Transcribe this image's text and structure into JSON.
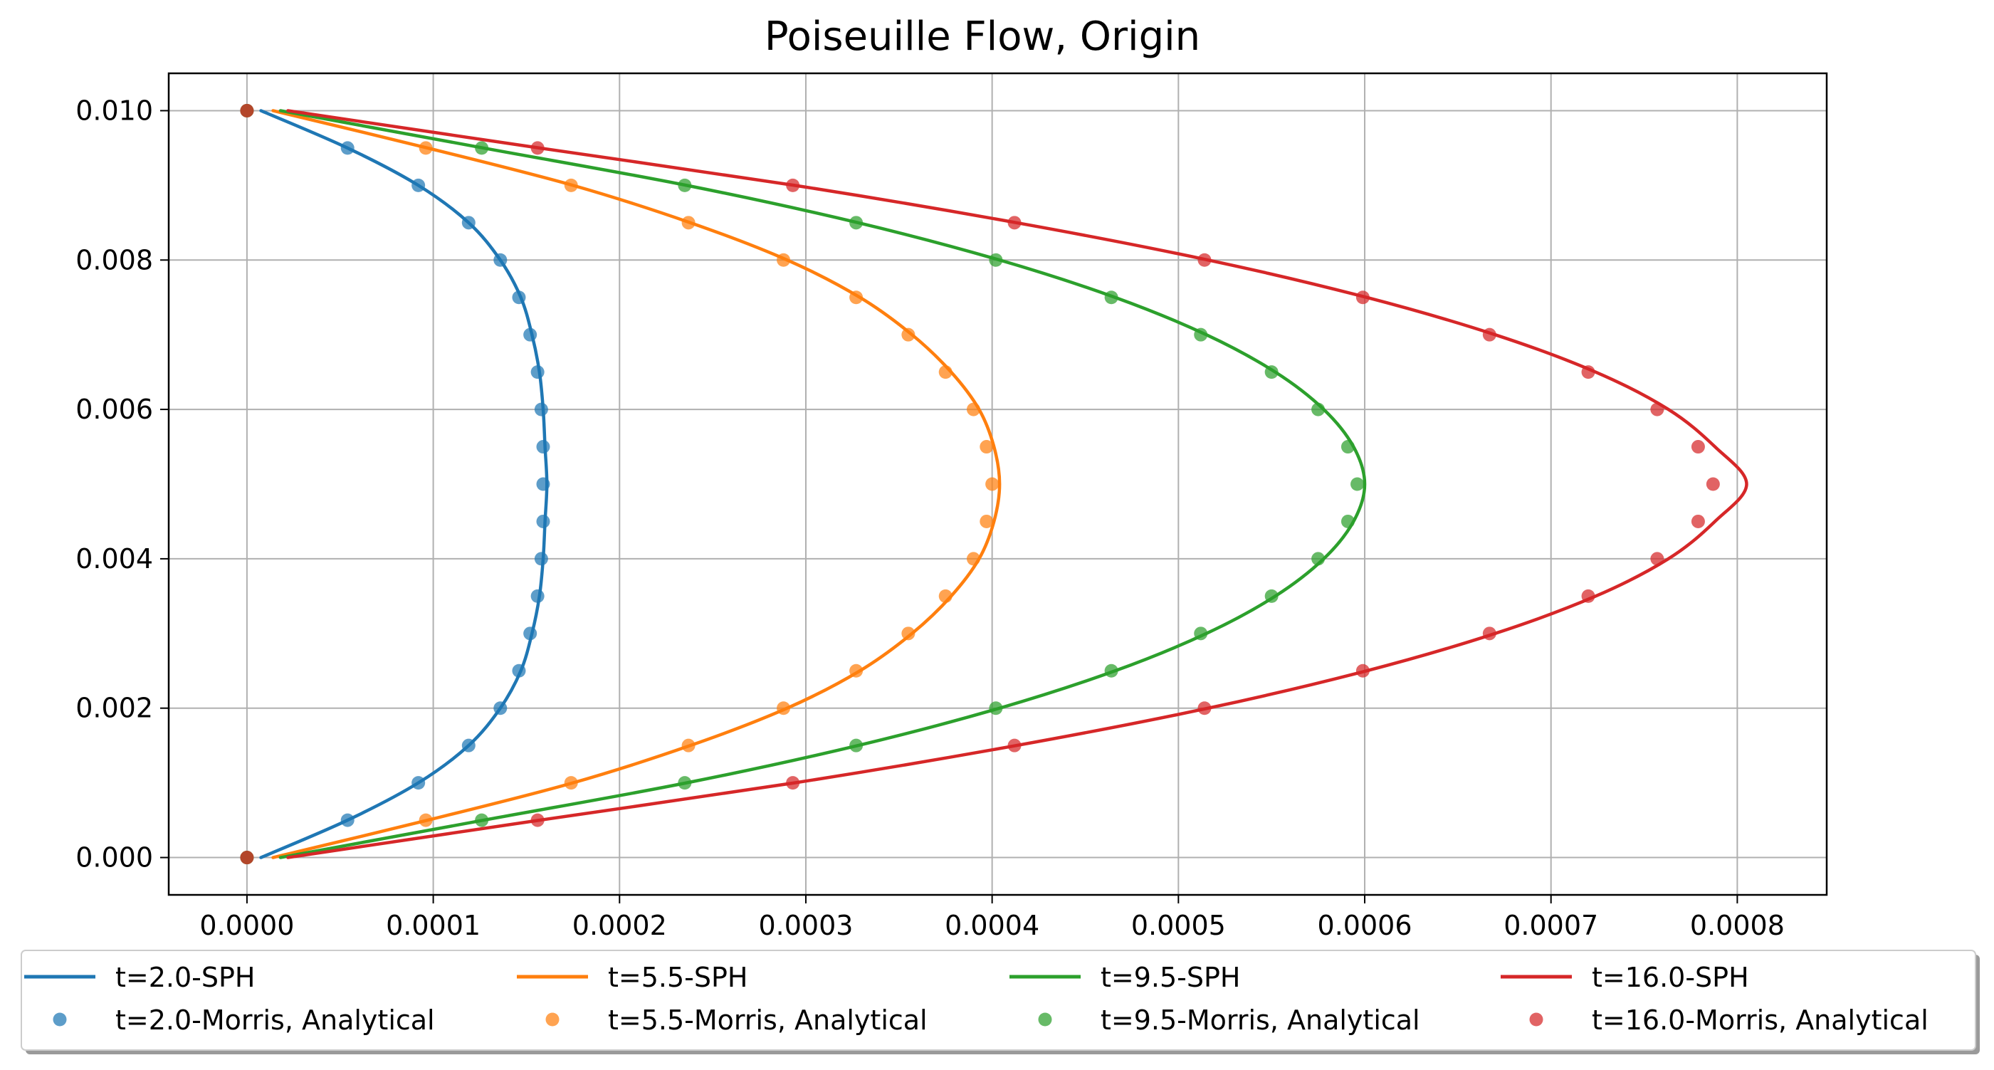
{
  "chart_data": {
    "type": "line",
    "title": "Poiseuille Flow, Origin",
    "xlabel": "",
    "ylabel": "",
    "xlim": [
      -4.2e-05,
      0.000848
    ],
    "ylim": [
      -0.0005,
      0.0105
    ],
    "xticks": [
      {
        "value": 0.0,
        "label": "0.0000"
      },
      {
        "value": 0.0001,
        "label": "0.0001"
      },
      {
        "value": 0.0002,
        "label": "0.0002"
      },
      {
        "value": 0.0003,
        "label": "0.0003"
      },
      {
        "value": 0.0004,
        "label": "0.0004"
      },
      {
        "value": 0.0005,
        "label": "0.0005"
      },
      {
        "value": 0.0006,
        "label": "0.0006"
      },
      {
        "value": 0.0007,
        "label": "0.0007"
      },
      {
        "value": 0.0008,
        "label": "0.0008"
      }
    ],
    "yticks": [
      {
        "value": 0.0,
        "label": "0.000"
      },
      {
        "value": 0.002,
        "label": "0.002"
      },
      {
        "value": 0.004,
        "label": "0.004"
      },
      {
        "value": 0.006,
        "label": "0.006"
      },
      {
        "value": 0.008,
        "label": "0.008"
      },
      {
        "value": 0.01,
        "label": "0.010"
      }
    ],
    "grid": true,
    "legend_position": "bottom",
    "series": [
      {
        "name": "t=2.0-SPH",
        "kind": "line",
        "color": "#1f77b4",
        "points": [
          [
            7.5e-06,
            0.0
          ],
          [
            5.4e-05,
            0.0005
          ],
          [
            9.2e-05,
            0.001
          ],
          [
            0.000119,
            0.0015
          ],
          [
            0.000136,
            0.002
          ],
          [
            0.000147,
            0.0025
          ],
          [
            0.000153,
            0.003
          ],
          [
            0.000157,
            0.0035
          ],
          [
            0.000159,
            0.004
          ],
          [
            0.00016,
            0.0045
          ],
          [
            0.000161,
            0.005
          ],
          [
            0.00016,
            0.0055
          ],
          [
            0.000159,
            0.006
          ],
          [
            0.000157,
            0.0065
          ],
          [
            0.000153,
            0.007
          ],
          [
            0.000147,
            0.0075
          ],
          [
            0.000136,
            0.008
          ],
          [
            0.000119,
            0.0085
          ],
          [
            9.2e-05,
            0.009
          ],
          [
            5.4e-05,
            0.0095
          ],
          [
            7.5e-06,
            0.01
          ]
        ]
      },
      {
        "name": "t=5.5-SPH",
        "kind": "line",
        "color": "#ff7f0e",
        "points": [
          [
            1.4e-05,
            0.0
          ],
          [
            9.7e-05,
            0.0005
          ],
          [
            0.000175,
            0.001
          ],
          [
            0.000238,
            0.0015
          ],
          [
            0.00029,
            0.002
          ],
          [
            0.000329,
            0.0025
          ],
          [
            0.000357,
            0.003
          ],
          [
            0.000378,
            0.0035
          ],
          [
            0.000393,
            0.004
          ],
          [
            0.000401,
            0.0045
          ],
          [
            0.000404,
            0.005
          ],
          [
            0.000401,
            0.0055
          ],
          [
            0.000393,
            0.006
          ],
          [
            0.000378,
            0.0065
          ],
          [
            0.000357,
            0.007
          ],
          [
            0.000329,
            0.0075
          ],
          [
            0.00029,
            0.008
          ],
          [
            0.000238,
            0.0085
          ],
          [
            0.000175,
            0.009
          ],
          [
            9.7e-05,
            0.0095
          ],
          [
            1.4e-05,
            0.01
          ]
        ]
      },
      {
        "name": "t=9.5-SPH",
        "kind": "line",
        "color": "#2ca02c",
        "points": [
          [
            1.8e-05,
            0.0
          ],
          [
            0.000127,
            0.0005
          ],
          [
            0.000236,
            0.001
          ],
          [
            0.000328,
            0.0015
          ],
          [
            0.000404,
            0.002
          ],
          [
            0.000466,
            0.0025
          ],
          [
            0.000515,
            0.003
          ],
          [
            0.000552,
            0.0035
          ],
          [
            0.000578,
            0.004
          ],
          [
            0.000594,
            0.0045
          ],
          [
            0.0006,
            0.005
          ],
          [
            0.000594,
            0.0055
          ],
          [
            0.000578,
            0.006
          ],
          [
            0.000552,
            0.0065
          ],
          [
            0.000515,
            0.007
          ],
          [
            0.000466,
            0.0075
          ],
          [
            0.000404,
            0.008
          ],
          [
            0.000328,
            0.0085
          ],
          [
            0.000236,
            0.009
          ],
          [
            0.000127,
            0.0095
          ],
          [
            1.8e-05,
            0.01
          ]
        ]
      },
      {
        "name": "t=16.0-SPH",
        "kind": "line",
        "color": "#d62728",
        "points": [
          [
            2.2e-05,
            0.0
          ],
          [
            0.000157,
            0.0005
          ],
          [
            0.000294,
            0.001
          ],
          [
            0.000413,
            0.0015
          ],
          [
            0.000516,
            0.002
          ],
          [
            0.000601,
            0.0025
          ],
          [
            0.00067,
            0.003
          ],
          [
            0.000724,
            0.0035
          ],
          [
            0.000763,
            0.004
          ],
          [
            0.000788,
            0.0045
          ],
          [
            0.000805,
            0.005
          ],
          [
            0.000788,
            0.0055
          ],
          [
            0.000763,
            0.006
          ],
          [
            0.000724,
            0.0065
          ],
          [
            0.00067,
            0.007
          ],
          [
            0.000601,
            0.0075
          ],
          [
            0.000516,
            0.008
          ],
          [
            0.000413,
            0.0085
          ],
          [
            0.000294,
            0.009
          ],
          [
            0.000157,
            0.0095
          ],
          [
            2.2e-05,
            0.01
          ]
        ]
      },
      {
        "name": "t=2.0-Morris, Analytical",
        "kind": "scatter",
        "color": "#1f77b4",
        "points": [
          [
            0.0,
            0.0
          ],
          [
            5.4e-05,
            0.0005
          ],
          [
            9.2e-05,
            0.001
          ],
          [
            0.000119,
            0.0015
          ],
          [
            0.000136,
            0.002
          ],
          [
            0.000146,
            0.0025
          ],
          [
            0.000152,
            0.003
          ],
          [
            0.000156,
            0.0035
          ],
          [
            0.000158,
            0.004
          ],
          [
            0.000159,
            0.0045
          ],
          [
            0.000159,
            0.005
          ],
          [
            0.000159,
            0.0055
          ],
          [
            0.000158,
            0.006
          ],
          [
            0.000156,
            0.0065
          ],
          [
            0.000152,
            0.007
          ],
          [
            0.000146,
            0.0075
          ],
          [
            0.000136,
            0.008
          ],
          [
            0.000119,
            0.0085
          ],
          [
            9.2e-05,
            0.009
          ],
          [
            5.4e-05,
            0.0095
          ],
          [
            0.0,
            0.01
          ]
        ]
      },
      {
        "name": "t=5.5-Morris, Analytical",
        "kind": "scatter",
        "color": "#ff7f0e",
        "points": [
          [
            0.0,
            0.0
          ],
          [
            9.6e-05,
            0.0005
          ],
          [
            0.000174,
            0.001
          ],
          [
            0.000237,
            0.0015
          ],
          [
            0.000288,
            0.002
          ],
          [
            0.000327,
            0.0025
          ],
          [
            0.000355,
            0.003
          ],
          [
            0.000375,
            0.0035
          ],
          [
            0.00039,
            0.004
          ],
          [
            0.000397,
            0.0045
          ],
          [
            0.0004,
            0.005
          ],
          [
            0.000397,
            0.0055
          ],
          [
            0.00039,
            0.006
          ],
          [
            0.000375,
            0.0065
          ],
          [
            0.000355,
            0.007
          ],
          [
            0.000327,
            0.0075
          ],
          [
            0.000288,
            0.008
          ],
          [
            0.000237,
            0.0085
          ],
          [
            0.000174,
            0.009
          ],
          [
            9.6e-05,
            0.0095
          ],
          [
            0.0,
            0.01
          ]
        ]
      },
      {
        "name": "t=9.5-Morris, Analytical",
        "kind": "scatter",
        "color": "#2ca02c",
        "points": [
          [
            0.0,
            0.0
          ],
          [
            0.000126,
            0.0005
          ],
          [
            0.000235,
            0.001
          ],
          [
            0.000327,
            0.0015
          ],
          [
            0.000402,
            0.002
          ],
          [
            0.000464,
            0.0025
          ],
          [
            0.000512,
            0.003
          ],
          [
            0.00055,
            0.0035
          ],
          [
            0.000575,
            0.004
          ],
          [
            0.000591,
            0.0045
          ],
          [
            0.000596,
            0.005
          ],
          [
            0.000591,
            0.0055
          ],
          [
            0.000575,
            0.006
          ],
          [
            0.00055,
            0.0065
          ],
          [
            0.000512,
            0.007
          ],
          [
            0.000464,
            0.0075
          ],
          [
            0.000402,
            0.008
          ],
          [
            0.000327,
            0.0085
          ],
          [
            0.000235,
            0.009
          ],
          [
            0.000126,
            0.0095
          ],
          [
            0.0,
            0.01
          ]
        ]
      },
      {
        "name": "t=16.0-Morris, Analytical",
        "kind": "scatter",
        "color": "#d62728",
        "points": [
          [
            0.0,
            0.0
          ],
          [
            0.000156,
            0.0005
          ],
          [
            0.000293,
            0.001
          ],
          [
            0.000412,
            0.0015
          ],
          [
            0.000514,
            0.002
          ],
          [
            0.000599,
            0.0025
          ],
          [
            0.000667,
            0.003
          ],
          [
            0.00072,
            0.0035
          ],
          [
            0.000757,
            0.004
          ],
          [
            0.000779,
            0.0045
          ],
          [
            0.000787,
            0.005
          ],
          [
            0.000779,
            0.0055
          ],
          [
            0.000757,
            0.006
          ],
          [
            0.00072,
            0.0065
          ],
          [
            0.000667,
            0.007
          ],
          [
            0.000599,
            0.0075
          ],
          [
            0.000514,
            0.008
          ],
          [
            0.000412,
            0.0085
          ],
          [
            0.000293,
            0.009
          ],
          [
            0.000156,
            0.0095
          ],
          [
            0.0,
            0.01
          ]
        ]
      }
    ],
    "legend": [
      {
        "label": "t=2.0-SPH",
        "kind": "line",
        "color": "#1f77b4"
      },
      {
        "label": "t=5.5-SPH",
        "kind": "line",
        "color": "#ff7f0e"
      },
      {
        "label": "t=9.5-SPH",
        "kind": "line",
        "color": "#2ca02c"
      },
      {
        "label": "t=16.0-SPH",
        "kind": "line",
        "color": "#d62728"
      },
      {
        "label": "t=2.0-Morris, Analytical",
        "kind": "scatter",
        "color": "#1f77b4"
      },
      {
        "label": "t=5.5-Morris, Analytical",
        "kind": "scatter",
        "color": "#ff7f0e"
      },
      {
        "label": "t=9.5-Morris, Analytical",
        "kind": "scatter",
        "color": "#2ca02c"
      },
      {
        "label": "t=16.0-Morris, Analytical",
        "kind": "scatter",
        "color": "#d62728"
      }
    ]
  }
}
